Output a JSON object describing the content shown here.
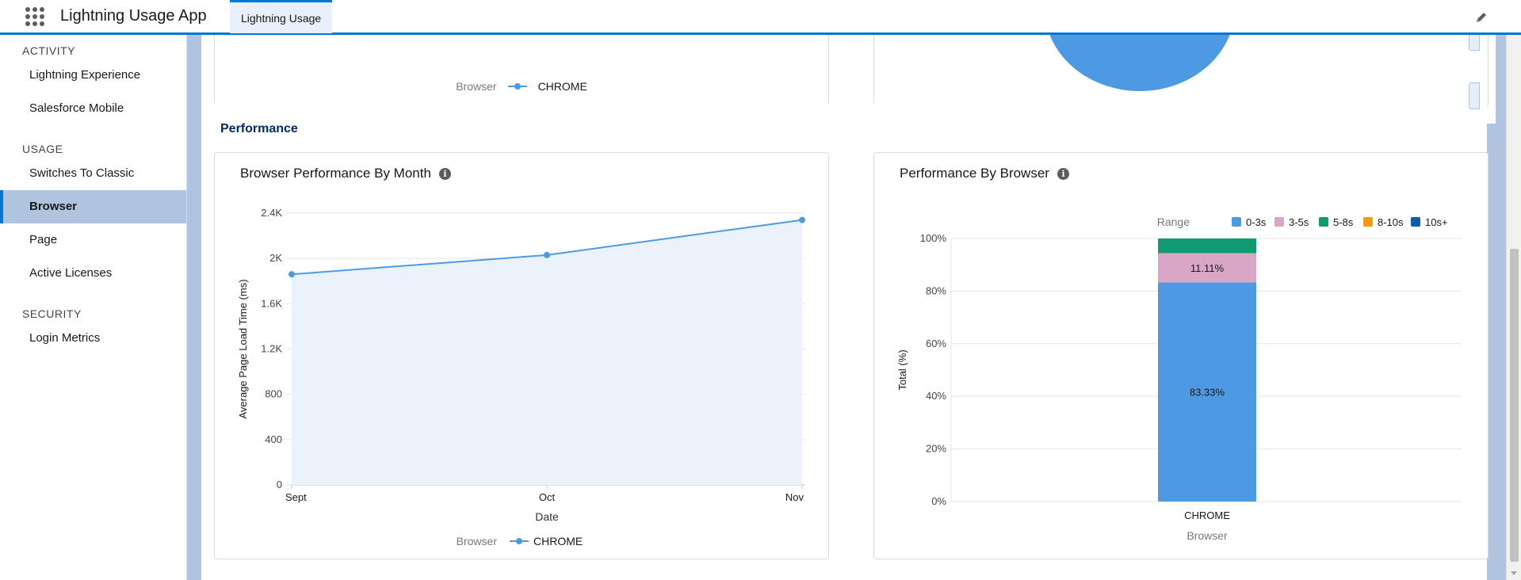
{
  "header": {
    "app_name": "Lightning Usage App",
    "tab_label": "Lightning Usage"
  },
  "sidebar": {
    "sections": [
      {
        "title": "ACTIVITY",
        "items": [
          "Lightning Experience",
          "Salesforce Mobile"
        ]
      },
      {
        "title": "USAGE",
        "items": [
          "Switches To Classic",
          "Browser",
          "Page",
          "Active Licenses"
        ]
      },
      {
        "title": "SECURITY",
        "items": [
          "Login Metrics"
        ]
      }
    ],
    "active_item": "Browser"
  },
  "top_card": {
    "legend_title": "Browser",
    "legend_item": "CHROME"
  },
  "performance": {
    "section_title": "Performance",
    "by_month": {
      "title": "Browser Performance By Month",
      "legend_title": "Browser",
      "legend_item": "CHROME"
    },
    "by_browser": {
      "title": "Performance By Browser"
    }
  },
  "chart_data": [
    {
      "type": "line",
      "title": "Browser Performance By Month",
      "xlabel": "Date",
      "ylabel": "Average Page Load Time (ms)",
      "categories": [
        "Sept",
        "Oct",
        "Nov"
      ],
      "series": [
        {
          "name": "CHROME",
          "values": [
            1860,
            2030,
            2340
          ],
          "color": "#4e9ae2"
        }
      ],
      "ylim": [
        0,
        2400
      ],
      "yticks": [
        "0",
        "400",
        "800",
        "1.2K",
        "1.6K",
        "2K",
        "2.4K"
      ],
      "area_fill": true,
      "legend_title": "Browser",
      "grid": true
    },
    {
      "type": "bar",
      "stacked": true,
      "title": "Performance By Browser",
      "xlabel": "Browser",
      "ylabel": "Total (%)",
      "categories": [
        "CHROME"
      ],
      "legend_title": "Range",
      "legend_position": "top-right",
      "series": [
        {
          "name": "0-3s",
          "values": [
            83.33
          ],
          "color": "#4e9ae2",
          "label": "83.33%"
        },
        {
          "name": "3-5s",
          "values": [
            11.11
          ],
          "color": "#d9a6c6",
          "label": "11.11%"
        },
        {
          "name": "5-8s",
          "values": [
            5.56
          ],
          "color": "#0f9a6f",
          "label": ""
        },
        {
          "name": "8-10s",
          "values": [
            0
          ],
          "color": "#f29e0c",
          "label": ""
        },
        {
          "name": "10s+",
          "values": [
            0
          ],
          "color": "#0b5ea8",
          "label": ""
        }
      ],
      "ylim": [
        0,
        100
      ],
      "yticks": [
        "0%",
        "20%",
        "40%",
        "60%",
        "80%",
        "100%"
      ],
      "grid": true
    }
  ]
}
